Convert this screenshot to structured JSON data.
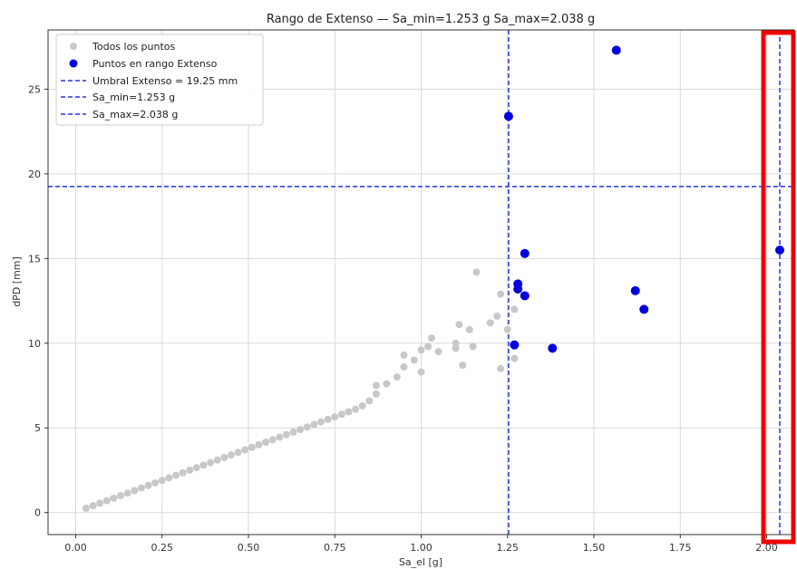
{
  "chart_data": {
    "type": "scatter",
    "title": "Rango de Extenso — Sa_min=1.253 g  Sa_max=2.038 g",
    "xlabel": "Sa_el [g]",
    "ylabel": "dPD [mm]",
    "xlim": [
      -0.08,
      2.08
    ],
    "ylim": [
      -1.3,
      28.5
    ],
    "xticks": [
      0.0,
      0.25,
      0.5,
      0.75,
      1.0,
      1.25,
      1.5,
      1.75,
      2.0
    ],
    "xtick_labels": [
      "0.00",
      "0.25",
      "0.50",
      "0.75",
      "1.00",
      "1.25",
      "1.50",
      "1.75",
      "2.00"
    ],
    "yticks": [
      0,
      5,
      10,
      15,
      20,
      25
    ],
    "ytick_labels": [
      "0",
      "5",
      "10",
      "15",
      "20",
      "25"
    ],
    "grid": true,
    "legend_position": "top-left",
    "colors": {
      "all_points": "#c8c8c8",
      "range_points": "#0000dd",
      "lines": "#2233ee",
      "highlight_box": "#ee0000"
    },
    "series": [
      {
        "name": "Todos los puntos",
        "color": "#c8c8c8",
        "points": [
          [
            0.03,
            0.25
          ],
          [
            0.05,
            0.4
          ],
          [
            0.07,
            0.55
          ],
          [
            0.09,
            0.7
          ],
          [
            0.11,
            0.85
          ],
          [
            0.13,
            1.0
          ],
          [
            0.15,
            1.15
          ],
          [
            0.17,
            1.3
          ],
          [
            0.19,
            1.45
          ],
          [
            0.21,
            1.6
          ],
          [
            0.23,
            1.75
          ],
          [
            0.25,
            1.9
          ],
          [
            0.27,
            2.05
          ],
          [
            0.29,
            2.2
          ],
          [
            0.31,
            2.35
          ],
          [
            0.33,
            2.5
          ],
          [
            0.35,
            2.65
          ],
          [
            0.37,
            2.8
          ],
          [
            0.39,
            2.95
          ],
          [
            0.41,
            3.1
          ],
          [
            0.43,
            3.25
          ],
          [
            0.45,
            3.4
          ],
          [
            0.47,
            3.55
          ],
          [
            0.49,
            3.7
          ],
          [
            0.51,
            3.85
          ],
          [
            0.53,
            4.0
          ],
          [
            0.55,
            4.15
          ],
          [
            0.57,
            4.3
          ],
          [
            0.59,
            4.45
          ],
          [
            0.61,
            4.6
          ],
          [
            0.63,
            4.75
          ],
          [
            0.65,
            4.9
          ],
          [
            0.67,
            5.05
          ],
          [
            0.69,
            5.2
          ],
          [
            0.71,
            5.35
          ],
          [
            0.73,
            5.5
          ],
          [
            0.75,
            5.65
          ],
          [
            0.77,
            5.8
          ],
          [
            0.79,
            5.95
          ],
          [
            0.81,
            6.1
          ],
          [
            0.83,
            6.3
          ],
          [
            0.85,
            6.6
          ],
          [
            0.87,
            7.0
          ],
          [
            0.87,
            7.5
          ],
          [
            0.9,
            7.6
          ],
          [
            0.93,
            8.0
          ],
          [
            0.95,
            8.6
          ],
          [
            0.95,
            9.3
          ],
          [
            0.98,
            9.0
          ],
          [
            1.0,
            8.3
          ],
          [
            1.0,
            9.6
          ],
          [
            1.02,
            9.8
          ],
          [
            1.03,
            10.3
          ],
          [
            1.05,
            9.5
          ],
          [
            1.1,
            9.7
          ],
          [
            1.1,
            10.0
          ],
          [
            1.11,
            11.1
          ],
          [
            1.12,
            8.7
          ],
          [
            1.14,
            10.8
          ],
          [
            1.15,
            9.8
          ],
          [
            1.16,
            14.2
          ],
          [
            1.2,
            11.2
          ],
          [
            1.22,
            11.6
          ],
          [
            1.23,
            12.9
          ],
          [
            1.23,
            8.5
          ],
          [
            1.25,
            10.8
          ],
          [
            1.27,
            12.0
          ],
          [
            1.27,
            9.1
          ]
        ]
      },
      {
        "name": "Puntos en rango Extenso",
        "color": "#0000dd",
        "points": [
          [
            1.253,
            23.4
          ],
          [
            1.27,
            9.9
          ],
          [
            1.28,
            13.5
          ],
          [
            1.28,
            13.2
          ],
          [
            1.3,
            15.3
          ],
          [
            1.3,
            12.8
          ],
          [
            1.38,
            9.7
          ],
          [
            1.565,
            27.3
          ],
          [
            1.62,
            13.1
          ],
          [
            1.645,
            12.0
          ],
          [
            2.038,
            15.5
          ]
        ]
      }
    ],
    "reference_lines": [
      {
        "name": "Umbral Extenso = 19.25 mm",
        "orientation": "horizontal",
        "value": 19.25
      },
      {
        "name": "Sa_min=1.253 g",
        "orientation": "vertical",
        "value": 1.253
      },
      {
        "name": "Sa_max=2.038 g",
        "orientation": "vertical",
        "value": 2.038
      }
    ]
  }
}
